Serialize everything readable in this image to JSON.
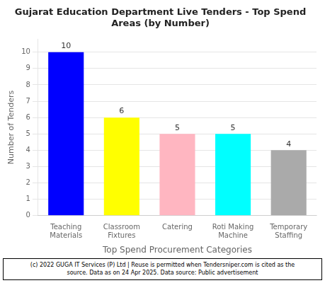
{
  "chart_data": {
    "type": "bar",
    "title": "Gujarat Education Department Live Tenders - Top Spend\nAreas (by Number)",
    "categories": [
      "Teaching\nMaterials",
      "Classroom\nFixtures",
      "Catering",
      "Roti Making\nMachine",
      "Temporary\nStaffing"
    ],
    "values": [
      10,
      6,
      5,
      5,
      4
    ],
    "colors": [
      "#0000FF",
      "#FFFF00",
      "#FFB6C1",
      "#00FFFF",
      "#AAAAAA"
    ],
    "xlabel": "Top Spend Procurement Categories",
    "ylabel": "Number of Tenders",
    "ylim": [
      0,
      10.8
    ],
    "yticks": [
      0,
      1,
      2,
      3,
      4,
      5,
      6,
      7,
      8,
      9,
      10
    ],
    "grid": true,
    "data_labels": true,
    "annotations": [
      "(c) 2022 GUGA IT Services (P) Ltd | Reuse is permitted when Tendersniper.com is cited as the\nsource. Data as on 24 Apr 2025. Data source: Public advertisement"
    ]
  }
}
